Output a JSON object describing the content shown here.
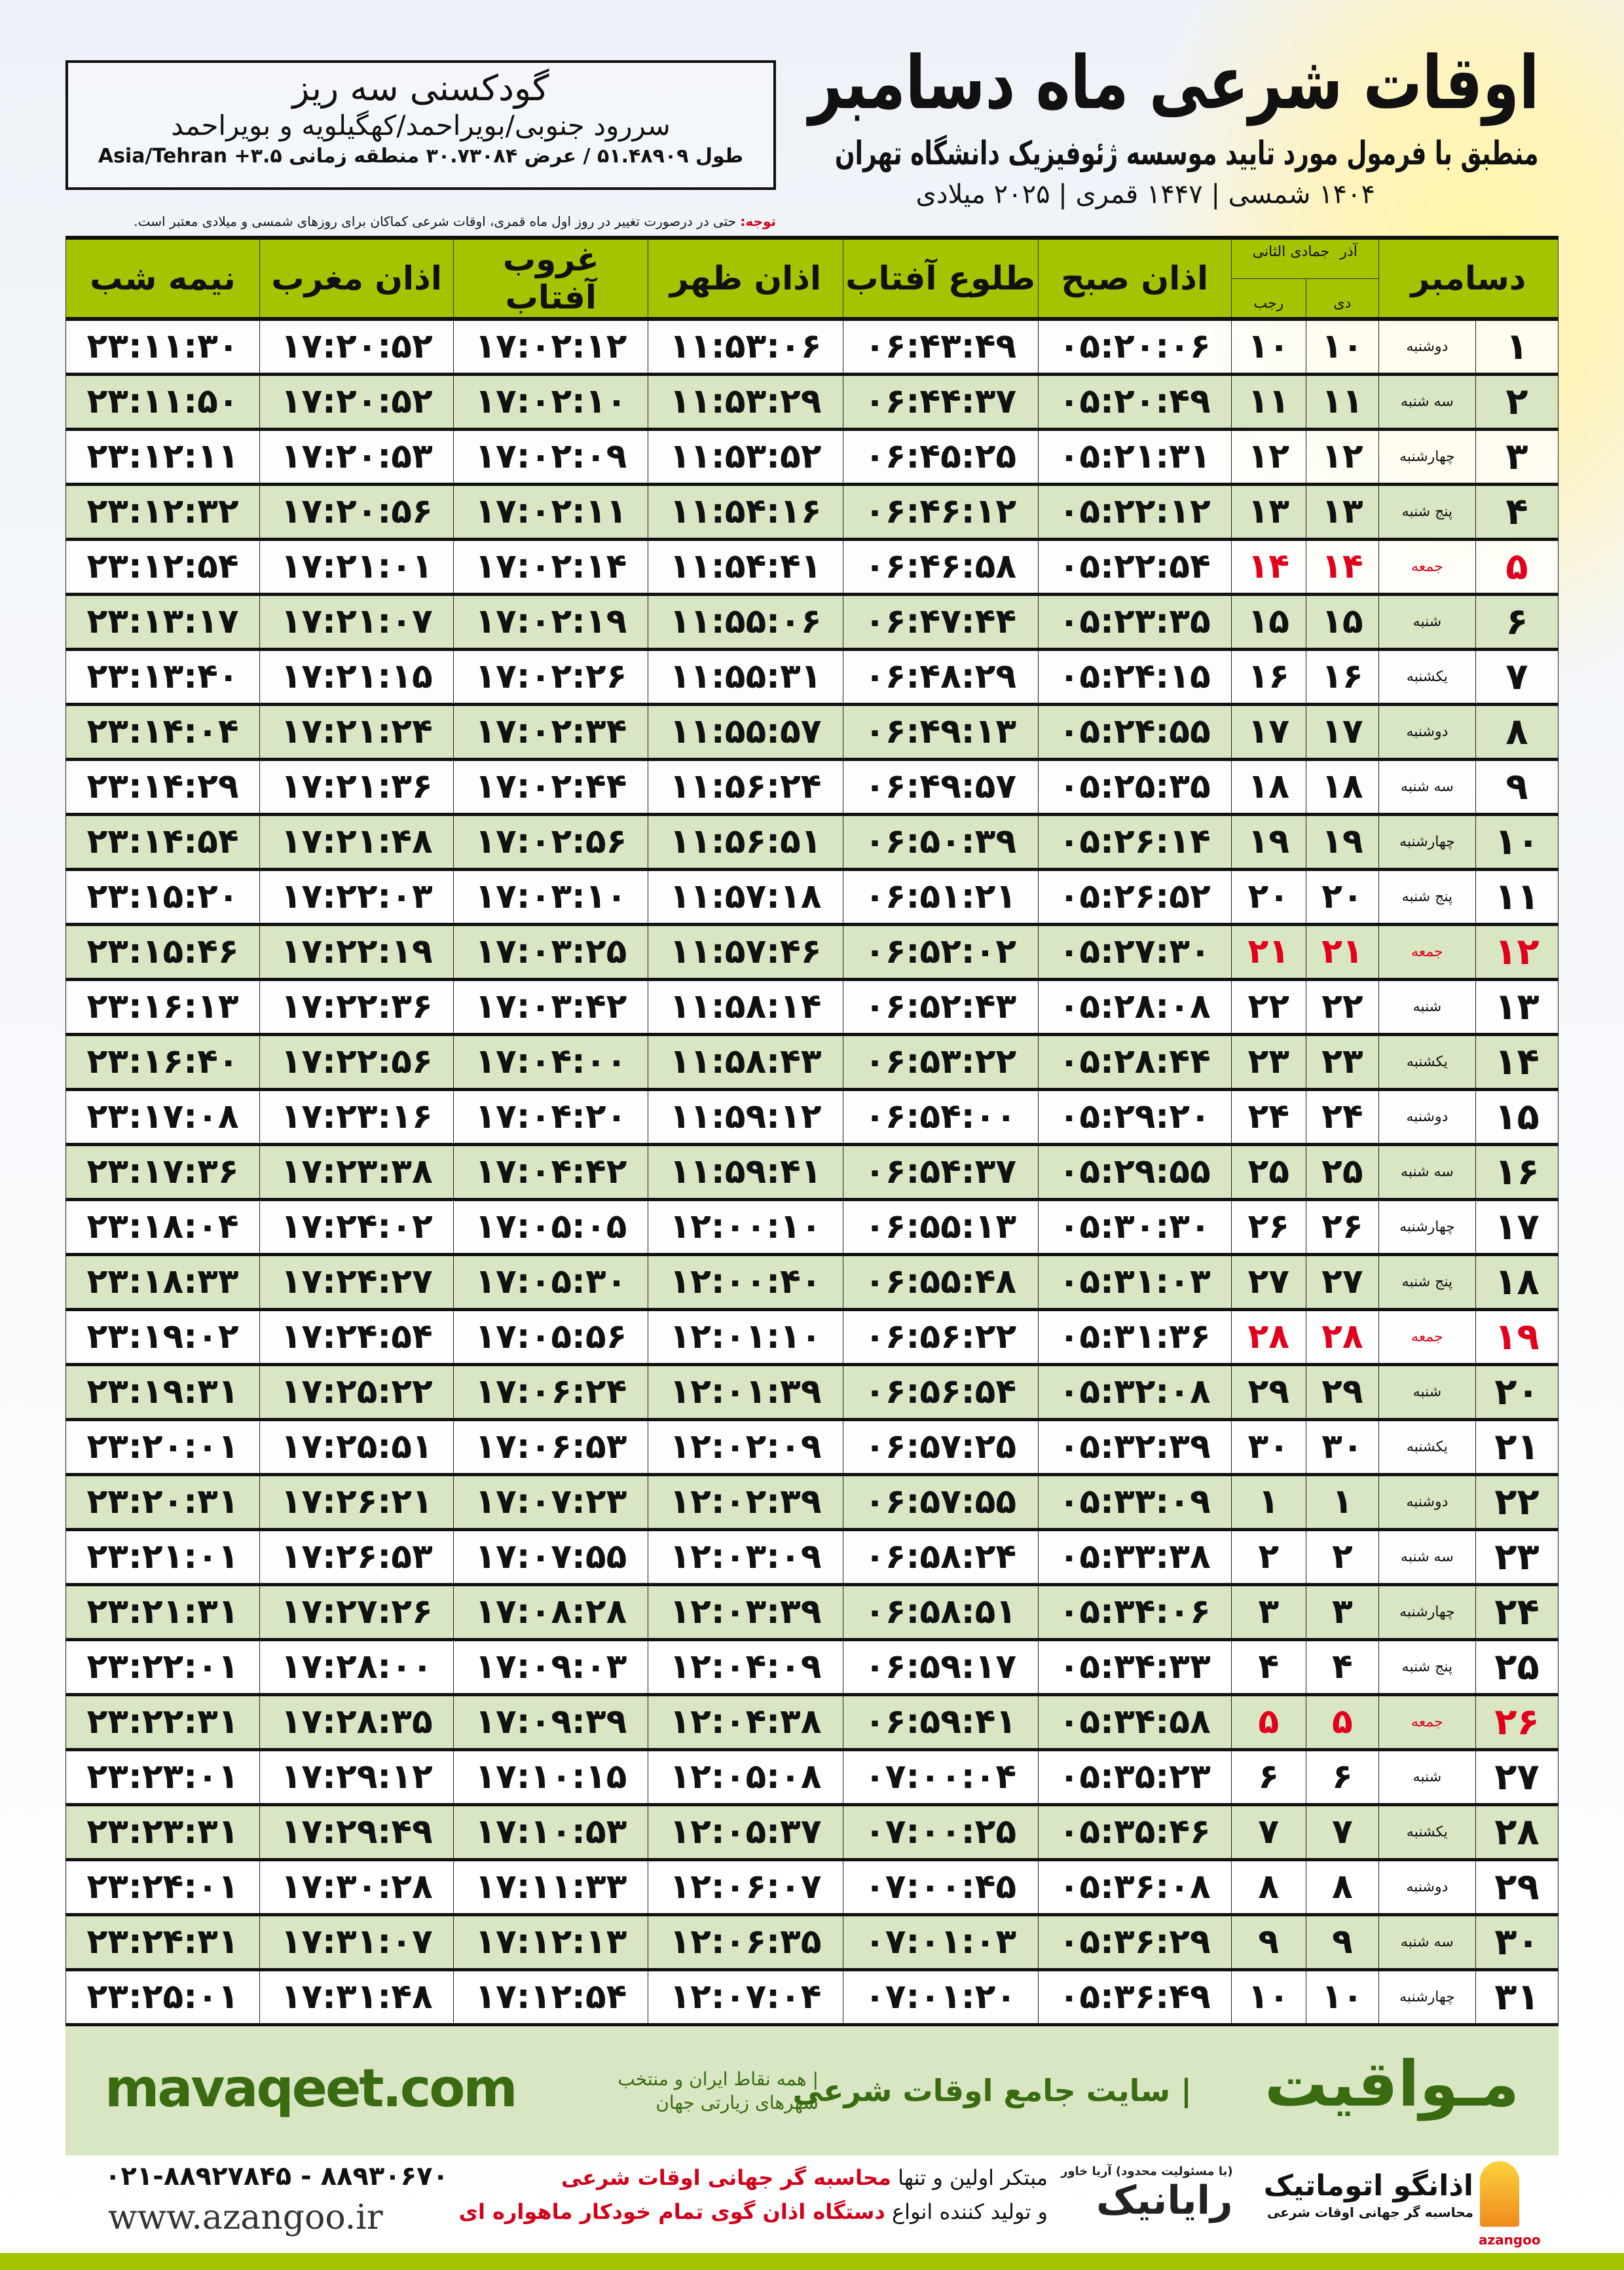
{
  "header": {
    "title": "اوقات شرعی ماه دسامبر",
    "subtitle": "منطبق با فرمول مورد تایید موسسه ژئوفیزیک دانشگاه تهران",
    "dates": "۱۴۰۴ شمسی | ۱۴۴۷ قمری | ۲۰۲۵ میلادی"
  },
  "location": {
    "name": "گودکسنی سه ریز",
    "path": "سررود جنوبی/بویراحمد/کهگیلویه و بویراحمد",
    "coords": "طول ۵۱.۴۸۹۰۹ / عرض ۳۰.۷۳۰۸۴ منطقه زمانی ۳.۵+ Asia/Tehran"
  },
  "note": {
    "label": "توجه:",
    "text": " حتی در درصورت تغییر در روز اول ماه قمری، اوقات شرعی کماکان برای روزهای شمسی و میلادی معتبر است."
  },
  "columns": {
    "month": "دسامبر",
    "dey_top": "آذر",
    "dey": "دی",
    "rajab_top": "جمادی الثانی",
    "rajab": "رجب",
    "fajr": "اذان صبح",
    "sunrise": "طلوع آفتاب",
    "dhuhr": "اذان ظهر",
    "sunset": "غروب آفتاب",
    "maghrib": "اذان مغرب",
    "midnight": "نیمه شب"
  },
  "colors": {
    "header_green": "#a4c400",
    "row_alt": "#d8e6c4",
    "friday_red": "#e0001b"
  },
  "rows": [
    [
      "۱",
      "دوشنبه",
      "۱۰",
      "۱۰",
      "۰۵:۲۰:۰۶",
      "۰۶:۴۳:۴۹",
      "۱۱:۵۳:۰۶",
      "۱۷:۰۲:۱۲",
      "۱۷:۲۰:۵۲",
      "۲۳:۱۱:۳۰"
    ],
    [
      "۲",
      "سه شنبه",
      "۱۱",
      "۱۱",
      "۰۵:۲۰:۴۹",
      "۰۶:۴۴:۳۷",
      "۱۱:۵۳:۲۹",
      "۱۷:۰۲:۱۰",
      "۱۷:۲۰:۵۲",
      "۲۳:۱۱:۵۰"
    ],
    [
      "۳",
      "چهارشنبه",
      "۱۲",
      "۱۲",
      "۰۵:۲۱:۳۱",
      "۰۶:۴۵:۲۵",
      "۱۱:۵۳:۵۲",
      "۱۷:۰۲:۰۹",
      "۱۷:۲۰:۵۳",
      "۲۳:۱۲:۱۱"
    ],
    [
      "۴",
      "پنج شنبه",
      "۱۳",
      "۱۳",
      "۰۵:۲۲:۱۲",
      "۰۶:۴۶:۱۲",
      "۱۱:۵۴:۱۶",
      "۱۷:۰۲:۱۱",
      "۱۷:۲۰:۵۶",
      "۲۳:۱۲:۳۲"
    ],
    [
      "۵",
      "جمعه",
      "۱۴",
      "۱۴",
      "۰۵:۲۲:۵۴",
      "۰۶:۴۶:۵۸",
      "۱۱:۵۴:۴۱",
      "۱۷:۰۲:۱۴",
      "۱۷:۲۱:۰۱",
      "۲۳:۱۲:۵۴"
    ],
    [
      "۶",
      "شنبه",
      "۱۵",
      "۱۵",
      "۰۵:۲۳:۳۵",
      "۰۶:۴۷:۴۴",
      "۱۱:۵۵:۰۶",
      "۱۷:۰۲:۱۹",
      "۱۷:۲۱:۰۷",
      "۲۳:۱۳:۱۷"
    ],
    [
      "۷",
      "یکشنبه",
      "۱۶",
      "۱۶",
      "۰۵:۲۴:۱۵",
      "۰۶:۴۸:۲۹",
      "۱۱:۵۵:۳۱",
      "۱۷:۰۲:۲۶",
      "۱۷:۲۱:۱۵",
      "۲۳:۱۳:۴۰"
    ],
    [
      "۸",
      "دوشنبه",
      "۱۷",
      "۱۷",
      "۰۵:۲۴:۵۵",
      "۰۶:۴۹:۱۳",
      "۱۱:۵۵:۵۷",
      "۱۷:۰۲:۳۴",
      "۱۷:۲۱:۲۴",
      "۲۳:۱۴:۰۴"
    ],
    [
      "۹",
      "سه شنبه",
      "۱۸",
      "۱۸",
      "۰۵:۲۵:۳۵",
      "۰۶:۴۹:۵۷",
      "۱۱:۵۶:۲۴",
      "۱۷:۰۲:۴۴",
      "۱۷:۲۱:۳۶",
      "۲۳:۱۴:۲۹"
    ],
    [
      "۱۰",
      "چهارشنبه",
      "۱۹",
      "۱۹",
      "۰۵:۲۶:۱۴",
      "۰۶:۵۰:۳۹",
      "۱۱:۵۶:۵۱",
      "۱۷:۰۲:۵۶",
      "۱۷:۲۱:۴۸",
      "۲۳:۱۴:۵۴"
    ],
    [
      "۱۱",
      "پنج شنبه",
      "۲۰",
      "۲۰",
      "۰۵:۲۶:۵۲",
      "۰۶:۵۱:۲۱",
      "۱۱:۵۷:۱۸",
      "۱۷:۰۳:۱۰",
      "۱۷:۲۲:۰۳",
      "۲۳:۱۵:۲۰"
    ],
    [
      "۱۲",
      "جمعه",
      "۲۱",
      "۲۱",
      "۰۵:۲۷:۳۰",
      "۰۶:۵۲:۰۲",
      "۱۱:۵۷:۴۶",
      "۱۷:۰۳:۲۵",
      "۱۷:۲۲:۱۹",
      "۲۳:۱۵:۴۶"
    ],
    [
      "۱۳",
      "شنبه",
      "۲۲",
      "۲۲",
      "۰۵:۲۸:۰۸",
      "۰۶:۵۲:۴۳",
      "۱۱:۵۸:۱۴",
      "۱۷:۰۳:۴۲",
      "۱۷:۲۲:۳۶",
      "۲۳:۱۶:۱۳"
    ],
    [
      "۱۴",
      "یکشنبه",
      "۲۳",
      "۲۳",
      "۰۵:۲۸:۴۴",
      "۰۶:۵۳:۲۲",
      "۱۱:۵۸:۴۳",
      "۱۷:۰۴:۰۰",
      "۱۷:۲۲:۵۶",
      "۲۳:۱۶:۴۰"
    ],
    [
      "۱۵",
      "دوشنبه",
      "۲۴",
      "۲۴",
      "۰۵:۲۹:۲۰",
      "۰۶:۵۴:۰۰",
      "۱۱:۵۹:۱۲",
      "۱۷:۰۴:۲۰",
      "۱۷:۲۳:۱۶",
      "۲۳:۱۷:۰۸"
    ],
    [
      "۱۶",
      "سه شنبه",
      "۲۵",
      "۲۵",
      "۰۵:۲۹:۵۵",
      "۰۶:۵۴:۳۷",
      "۱۱:۵۹:۴۱",
      "۱۷:۰۴:۴۲",
      "۱۷:۲۳:۳۸",
      "۲۳:۱۷:۳۶"
    ],
    [
      "۱۷",
      "چهارشنبه",
      "۲۶",
      "۲۶",
      "۰۵:۳۰:۳۰",
      "۰۶:۵۵:۱۳",
      "۱۲:۰۰:۱۰",
      "۱۷:۰۵:۰۵",
      "۱۷:۲۴:۰۲",
      "۲۳:۱۸:۰۴"
    ],
    [
      "۱۸",
      "پنج شنبه",
      "۲۷",
      "۲۷",
      "۰۵:۳۱:۰۳",
      "۰۶:۵۵:۴۸",
      "۱۲:۰۰:۴۰",
      "۱۷:۰۵:۳۰",
      "۱۷:۲۴:۲۷",
      "۲۳:۱۸:۳۳"
    ],
    [
      "۱۹",
      "جمعه",
      "۲۸",
      "۲۸",
      "۰۵:۳۱:۳۶",
      "۰۶:۵۶:۲۲",
      "۱۲:۰۱:۱۰",
      "۱۷:۰۵:۵۶",
      "۱۷:۲۴:۵۴",
      "۲۳:۱۹:۰۲"
    ],
    [
      "۲۰",
      "شنبه",
      "۲۹",
      "۲۹",
      "۰۵:۳۲:۰۸",
      "۰۶:۵۶:۵۴",
      "۱۲:۰۱:۳۹",
      "۱۷:۰۶:۲۴",
      "۱۷:۲۵:۲۲",
      "۲۳:۱۹:۳۱"
    ],
    [
      "۲۱",
      "یکشنبه",
      "۳۰",
      "۳۰",
      "۰۵:۳۲:۳۹",
      "۰۶:۵۷:۲۵",
      "۱۲:۰۲:۰۹",
      "۱۷:۰۶:۵۳",
      "۱۷:۲۵:۵۱",
      "۲۳:۲۰:۰۱"
    ],
    [
      "۲۲",
      "دوشنبه",
      "۱",
      "۱",
      "۰۵:۳۳:۰۹",
      "۰۶:۵۷:۵۵",
      "۱۲:۰۲:۳۹",
      "۱۷:۰۷:۲۳",
      "۱۷:۲۶:۲۱",
      "۲۳:۲۰:۳۱"
    ],
    [
      "۲۳",
      "سه شنبه",
      "۲",
      "۲",
      "۰۵:۳۳:۳۸",
      "۰۶:۵۸:۲۴",
      "۱۲:۰۳:۰۹",
      "۱۷:۰۷:۵۵",
      "۱۷:۲۶:۵۳",
      "۲۳:۲۱:۰۱"
    ],
    [
      "۲۴",
      "چهارشنبه",
      "۳",
      "۳",
      "۰۵:۳۴:۰۶",
      "۰۶:۵۸:۵۱",
      "۱۲:۰۳:۳۹",
      "۱۷:۰۸:۲۸",
      "۱۷:۲۷:۲۶",
      "۲۳:۲۱:۳۱"
    ],
    [
      "۲۵",
      "پنج شنبه",
      "۴",
      "۴",
      "۰۵:۳۴:۳۳",
      "۰۶:۵۹:۱۷",
      "۱۲:۰۴:۰۹",
      "۱۷:۰۹:۰۳",
      "۱۷:۲۸:۰۰",
      "۲۳:۲۲:۰۱"
    ],
    [
      "۲۶",
      "جمعه",
      "۵",
      "۵",
      "۰۵:۳۴:۵۸",
      "۰۶:۵۹:۴۱",
      "۱۲:۰۴:۳۸",
      "۱۷:۰۹:۳۹",
      "۱۷:۲۸:۳۵",
      "۲۳:۲۲:۳۱"
    ],
    [
      "۲۷",
      "شنبه",
      "۶",
      "۶",
      "۰۵:۳۵:۲۳",
      "۰۷:۰۰:۰۴",
      "۱۲:۰۵:۰۸",
      "۱۷:۱۰:۱۵",
      "۱۷:۲۹:۱۲",
      "۲۳:۲۳:۰۱"
    ],
    [
      "۲۸",
      "یکشنبه",
      "۷",
      "۷",
      "۰۵:۳۵:۴۶",
      "۰۷:۰۰:۲۵",
      "۱۲:۰۵:۳۷",
      "۱۷:۱۰:۵۳",
      "۱۷:۲۹:۴۹",
      "۲۳:۲۳:۳۱"
    ],
    [
      "۲۹",
      "دوشنبه",
      "۸",
      "۸",
      "۰۵:۳۶:۰۸",
      "۰۷:۰۰:۴۵",
      "۱۲:۰۶:۰۷",
      "۱۷:۱۱:۳۳",
      "۱۷:۳۰:۲۸",
      "۲۳:۲۴:۰۱"
    ],
    [
      "۳۰",
      "سه شنبه",
      "۹",
      "۹",
      "۰۵:۳۶:۲۹",
      "۰۷:۰۱:۰۳",
      "۱۲:۰۶:۳۵",
      "۱۷:۱۲:۱۳",
      "۱۷:۳۱:۰۷",
      "۲۳:۲۴:۳۱"
    ],
    [
      "۳۱",
      "چهارشنبه",
      "۱۰",
      "۱۰",
      "۰۵:۳۶:۴۹",
      "۰۷:۰۱:۲۰",
      "۱۲:۰۷:۰۴",
      "۱۷:۱۲:۵۴",
      "۱۷:۳۱:۴۸",
      "۲۳:۲۵:۰۱"
    ]
  ],
  "friday_rows": [
    5,
    12,
    19,
    26
  ],
  "band": {
    "site": "mavaqeet.com",
    "brand": "مـواقیت",
    "tagline": "| سایت جامع اوقات شرعی",
    "tagline2": "| همه نقاط ایران و منتخب شهرهای زیارتی جهان"
  },
  "footer": {
    "phone": "۰۲۱-۸۸۹۲۷۸۴۵ - ۸۸۹۳۰۶۷۰",
    "web": "www.azangoo.ir",
    "promo1_a": "مبتکر اولین و تنها ",
    "promo1_b": "محاسبه گر جهانی اوقات شرعی",
    "promo2_a": "و تولید کننده انواع ",
    "promo2_b": "دستگاه اذان گوی تمام خودکار ماهواره ای",
    "logo1_small": "(با مسئولیت محدود) آریا خاور",
    "logo1": "رایانیک",
    "logo2": "اذانگو اتوماتیک",
    "logo2_sub": "محاسبه گر جهانی اوقات شرعی",
    "logo2_name": "azangoo"
  }
}
